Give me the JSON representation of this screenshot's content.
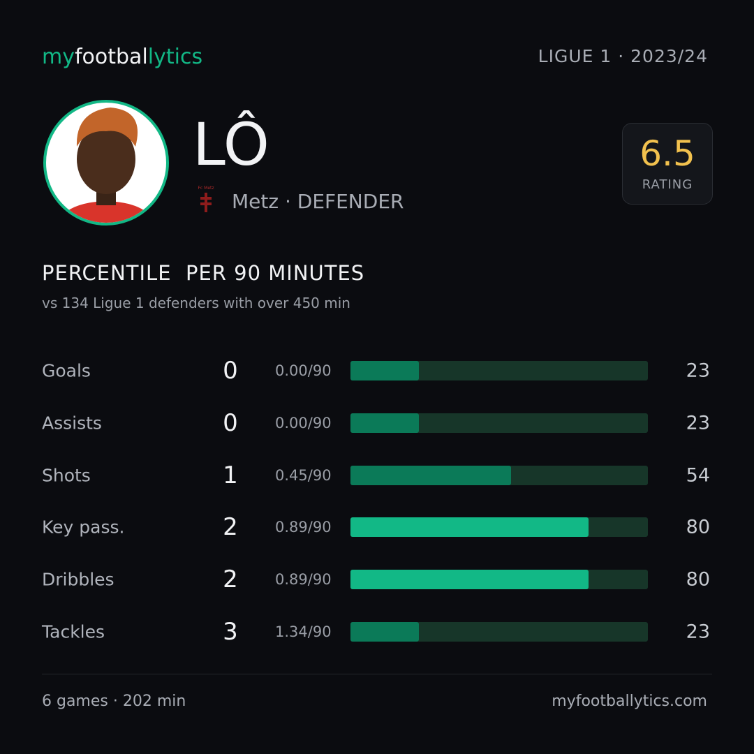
{
  "header": {
    "logo": [
      "my",
      "footbal",
      "lytics"
    ],
    "league": "LIGUE 1 · 2023/24"
  },
  "player": {
    "name": "LÔ",
    "club_logo_text": "Fc Metz",
    "info": "Metz · DEFENDER",
    "rating": 6.5,
    "rating_label": "RATING"
  },
  "section": {
    "title": [
      "PERCENTILE",
      "PER 90 MINUTES"
    ],
    "subtitle": [
      "vs 134 Ligue 1 defenders",
      "with over 450 min"
    ]
  },
  "stats": {
    "xlim": [
      0,
      100
    ],
    "rows": [
      {
        "label": "Goals",
        "count": 0,
        "per90": "0.00/90",
        "percentile": 23,
        "color": "#0b7a58"
      },
      {
        "label": "Assists",
        "count": 0,
        "per90": "0.00/90",
        "percentile": 23,
        "color": "#0b7a58"
      },
      {
        "label": "Shots",
        "count": 1,
        "per90": "0.45/90",
        "percentile": 54,
        "color": "#0b7a58"
      },
      {
        "label": "Key pass.",
        "count": 2,
        "per90": "0.89/90",
        "percentile": 80,
        "color": "#12b886"
      },
      {
        "label": "Dribbles",
        "count": 2,
        "per90": "0.89/90",
        "percentile": 80,
        "color": "#12b886"
      },
      {
        "label": "Tackles",
        "count": 3,
        "per90": "1.34/90",
        "percentile": 23,
        "color": "#0b7a58"
      }
    ]
  },
  "footer": {
    "games": "6 games · 202 min",
    "site": "myfootballytics.com"
  }
}
